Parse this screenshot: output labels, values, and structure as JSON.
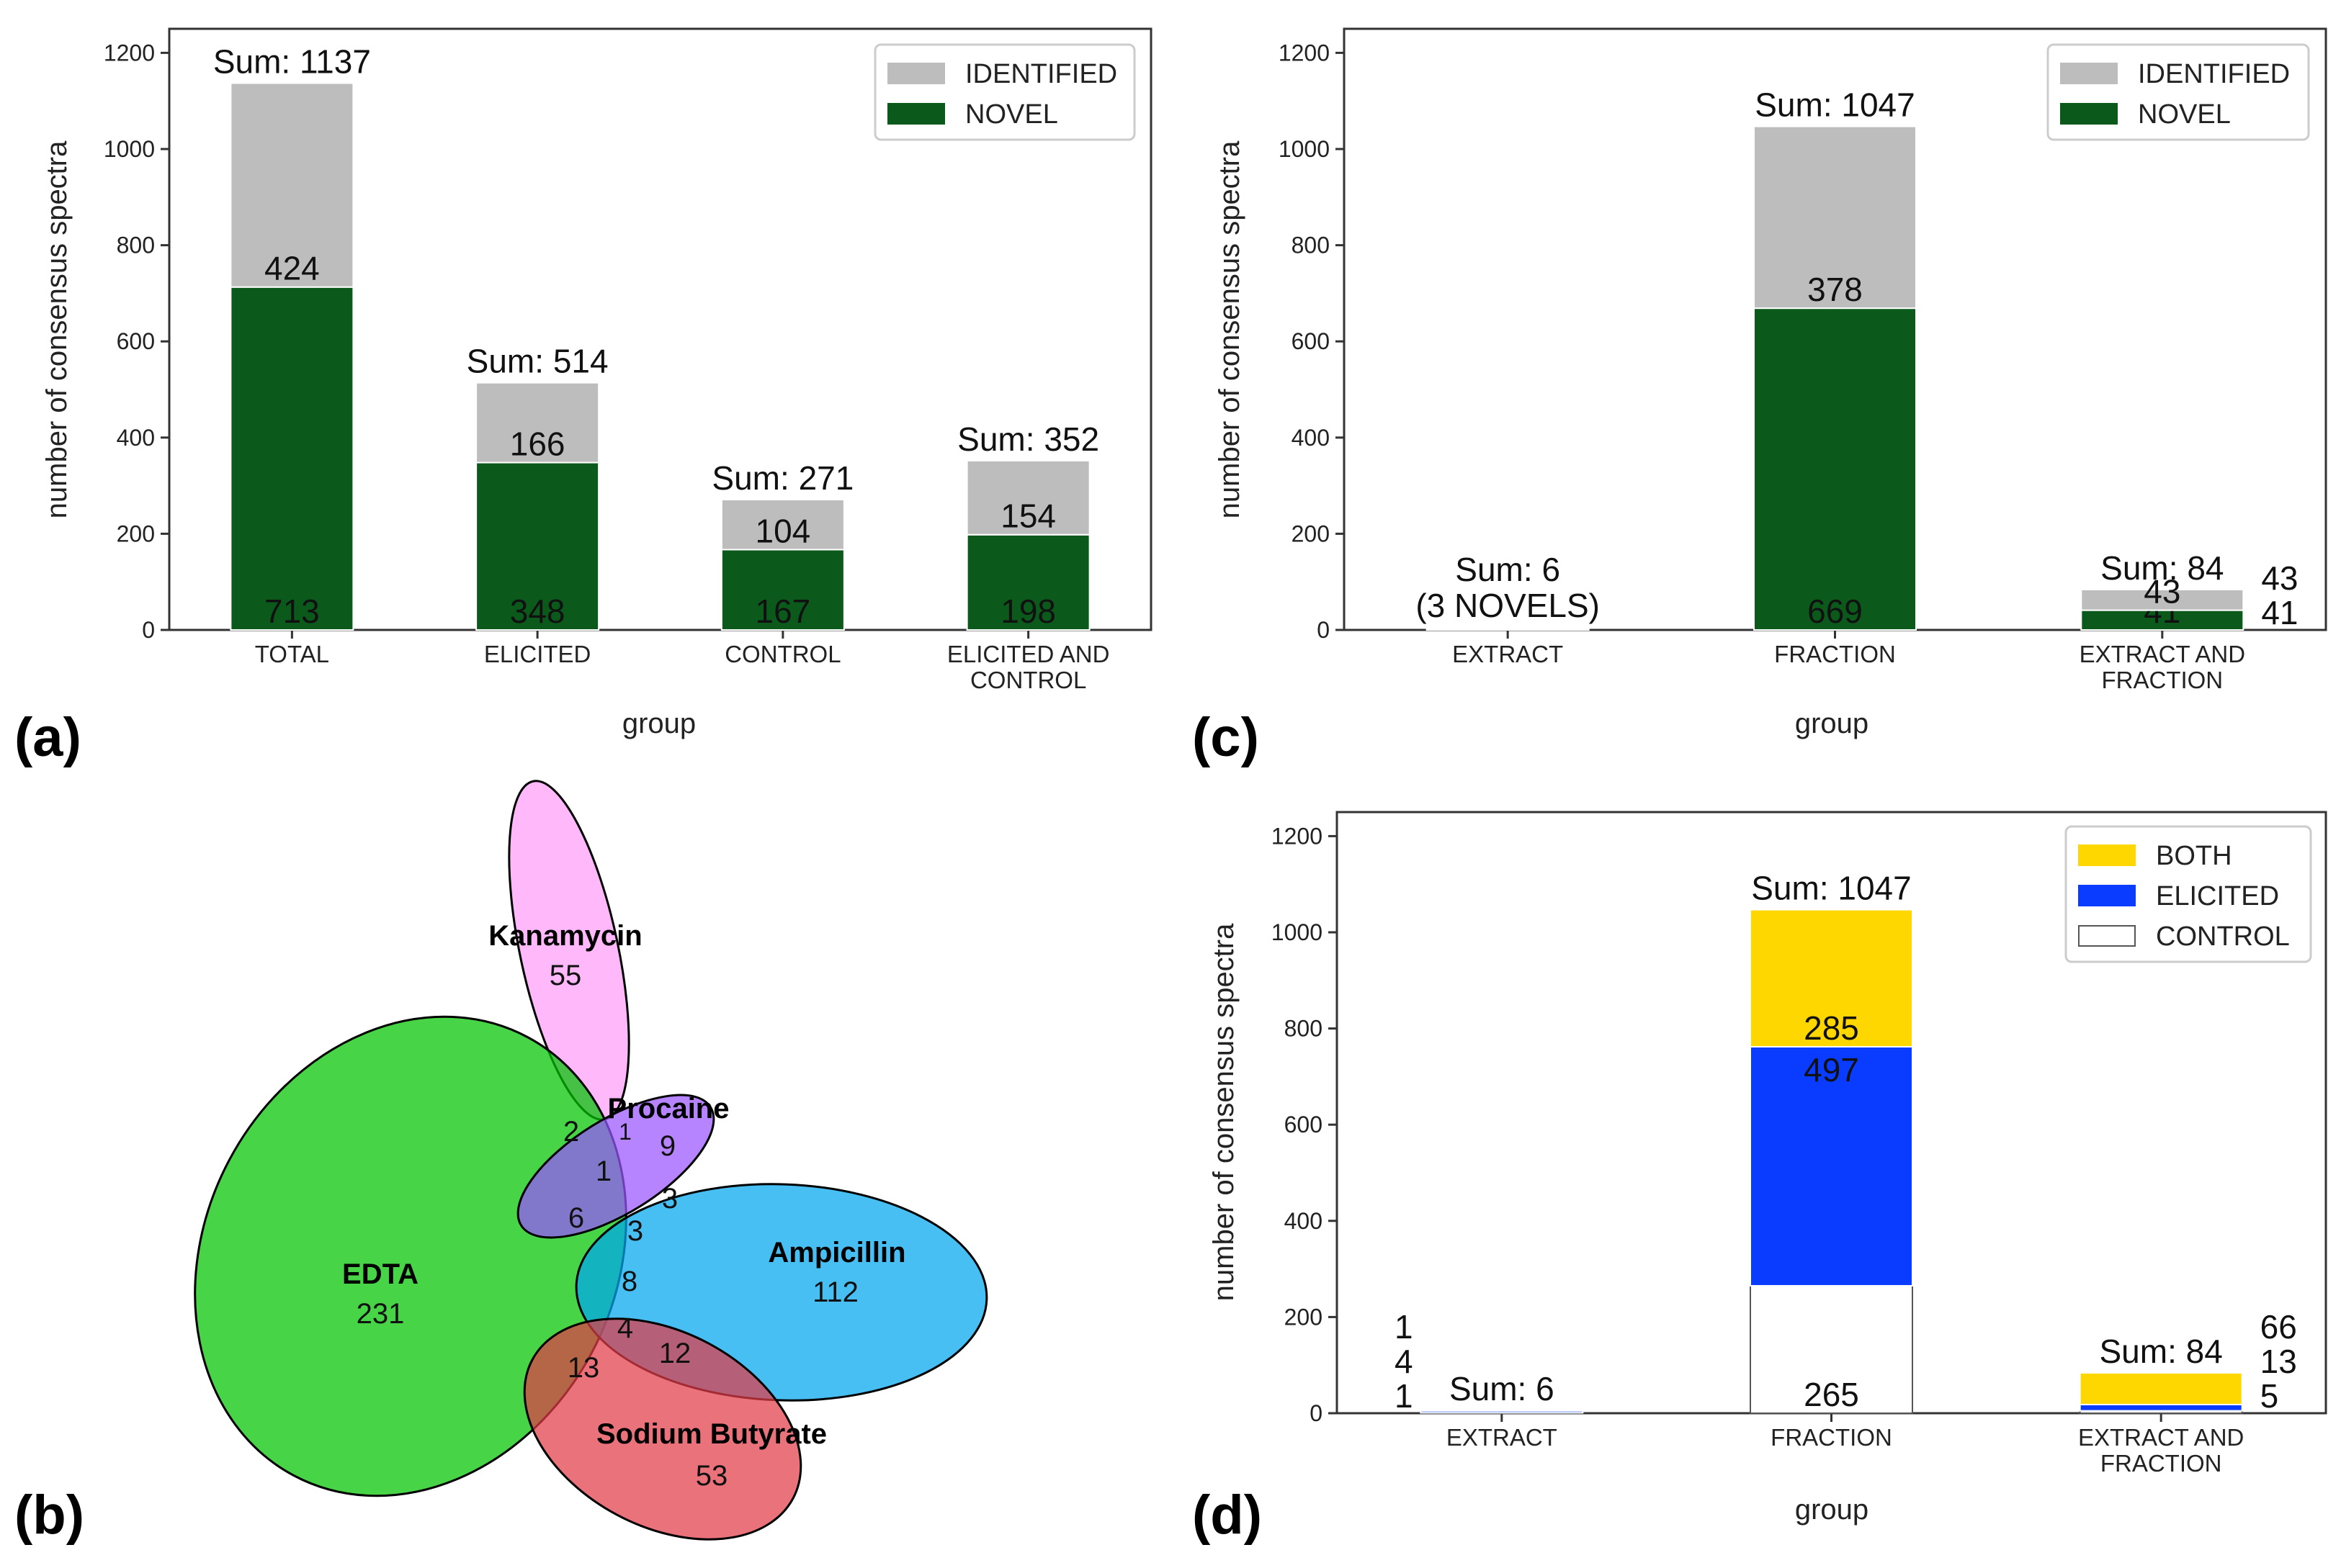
{
  "colors": {
    "identified": "#bdbdbd",
    "novel": "#0b5a1c",
    "both": "#ffd700",
    "elicited": "#0a3cff",
    "control": "#ffffff"
  },
  "chart_data": [
    {
      "id": "a",
      "panel_label": "(a)",
      "type": "bar",
      "stacked": true,
      "title": "",
      "xlabel": "group",
      "ylabel": "number of consensus spectra",
      "ylim": [
        0,
        1250
      ],
      "yticks": [
        "0",
        "200",
        "400",
        "600",
        "800",
        "1000",
        "1200"
      ],
      "categories": [
        [
          "TOTAL"
        ],
        [
          "ELICITED"
        ],
        [
          "CONTROL"
        ],
        [
          "ELICITED AND",
          "CONTROL"
        ]
      ],
      "series": [
        {
          "name": "NOVEL",
          "color_key": "novel",
          "values": [
            713,
            348,
            167,
            198
          ],
          "labels": [
            "713",
            "348",
            "167",
            "198"
          ],
          "label_pos": "bottom"
        },
        {
          "name": "IDENTIFIED",
          "color_key": "identified",
          "values": [
            424,
            166,
            104,
            154
          ],
          "labels": [
            "424",
            "166",
            "104",
            "154"
          ],
          "label_pos": "bottom"
        }
      ],
      "sum_labels": [
        [
          "Sum: 1137"
        ],
        [
          "Sum: 514"
        ],
        [
          "Sum: 271"
        ],
        [
          "Sum: 352"
        ]
      ],
      "legend": {
        "placement": "top-right",
        "entries": [
          {
            "label": "IDENTIFIED",
            "color_key": "identified"
          },
          {
            "label": "NOVEL",
            "color_key": "novel"
          }
        ]
      }
    },
    {
      "id": "c",
      "panel_label": "(c)",
      "type": "bar",
      "stacked": true,
      "title": "",
      "xlabel": "group",
      "ylabel": "number of consensus spectra",
      "ylim": [
        0,
        1250
      ],
      "yticks": [
        "0",
        "200",
        "400",
        "600",
        "800",
        "1000",
        "1200"
      ],
      "categories": [
        [
          "EXTRACT"
        ],
        [
          "FRACTION"
        ],
        [
          "EXTRACT AND",
          "FRACTION"
        ]
      ],
      "series": [
        {
          "name": "NOVEL",
          "color_key": "novel",
          "values": [
            3,
            669,
            41
          ],
          "labels": [
            "",
            "669",
            "41"
          ],
          "label_pos": "bottom"
        },
        {
          "name": "IDENTIFIED",
          "color_key": "identified",
          "values": [
            3,
            378,
            43
          ],
          "labels": [
            "",
            "378",
            "43"
          ],
          "label_pos": "bottom"
        }
      ],
      "side_labels": [
        null,
        null,
        [
          "43",
          "41"
        ]
      ],
      "sum_labels": [
        [
          "Sum: 6",
          "(3 NOVELS)"
        ],
        [
          "Sum: 1047"
        ],
        [
          "Sum: 84"
        ]
      ],
      "legend": {
        "placement": "top-right",
        "entries": [
          {
            "label": "IDENTIFIED",
            "color_key": "identified"
          },
          {
            "label": "NOVEL",
            "color_key": "novel"
          }
        ]
      }
    },
    {
      "id": "d",
      "panel_label": "(d)",
      "type": "bar",
      "stacked": true,
      "title": "",
      "xlabel": "group",
      "ylabel": "number of consensus spectra",
      "ylim": [
        0,
        1250
      ],
      "yticks": [
        "0",
        "200",
        "400",
        "600",
        "800",
        "1000",
        "1200"
      ],
      "categories": [
        [
          "EXTRACT"
        ],
        [
          "FRACTION"
        ],
        [
          "EXTRACT AND",
          "FRACTION"
        ]
      ],
      "series": [
        {
          "name": "CONTROL",
          "color_key": "control",
          "values": [
            1,
            265,
            5
          ],
          "labels": [
            "",
            "265",
            ""
          ],
          "label_pos": "bottom"
        },
        {
          "name": "ELICITED",
          "color_key": "elicited",
          "values": [
            4,
            497,
            13
          ],
          "labels": [
            "",
            "497",
            ""
          ],
          "label_pos": "top"
        },
        {
          "name": "BOTH",
          "color_key": "both",
          "values": [
            1,
            285,
            66
          ],
          "labels": [
            "",
            "285",
            ""
          ],
          "label_pos": "bottom"
        }
      ],
      "side_labels": [
        [
          "1",
          "4",
          "1"
        ],
        null,
        [
          "66",
          "13",
          "5"
        ]
      ],
      "sum_labels": [
        [
          "Sum: 6"
        ],
        [
          "Sum: 1047"
        ],
        [
          "Sum: 84"
        ]
      ],
      "legend": {
        "placement": "top-right",
        "entries": [
          {
            "label": "BOTH",
            "color_key": "both"
          },
          {
            "label": "ELICITED",
            "color_key": "elicited"
          },
          {
            "label": "CONTROL",
            "color_key": "control"
          }
        ]
      }
    },
    {
      "id": "b",
      "panel_label": "(b)",
      "type": "venn",
      "sets": [
        {
          "name": "EDTA",
          "only": "231",
          "color": "#00c400"
        },
        {
          "name": "Kanamycin",
          "only": "55",
          "color": "#ff9cf8"
        },
        {
          "name": "Procaine",
          "only": "9",
          "color": "#9a55ff"
        },
        {
          "name": "Ampicillin",
          "only": "112",
          "color": "#00a6ee"
        },
        {
          "name": "Sodium Butyrate",
          "only": "53",
          "color": "#e03c48"
        }
      ],
      "intersections": [
        "2",
        "1",
        "1",
        "6",
        "3",
        "3",
        "8",
        "4",
        "12",
        "13"
      ]
    }
  ]
}
